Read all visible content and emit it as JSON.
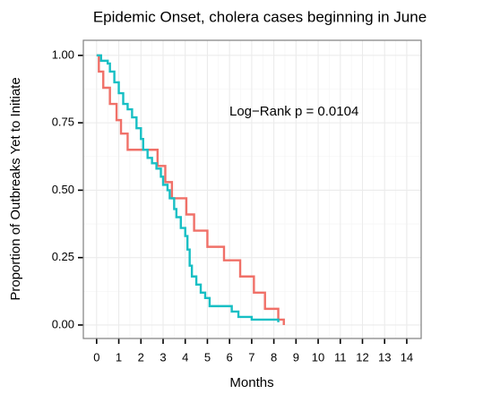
{
  "chart_data": {
    "type": "step",
    "title": "Epidemic Onset, cholera cases beginning in June",
    "xlabel": "Months",
    "ylabel": "Proportion of Outbreaks Yet to Initiate",
    "annotation": "Log−Rank p =  0.0104",
    "xlim": [
      -0.6,
      14.65
    ],
    "ylim": [
      -0.05,
      1.056
    ],
    "xticks": [
      0,
      1,
      2,
      3,
      4,
      5,
      6,
      7,
      8,
      9,
      10,
      11,
      12,
      13,
      14
    ],
    "yticks": [
      {
        "value": 0,
        "label": "0.00"
      },
      0.25,
      {
        "value": 0.5,
        "label": "0.50"
      },
      0.75,
      {
        "value": 1,
        "label": "1.00"
      }
    ],
    "grid": true,
    "series": [
      {
        "color": "#f07068",
        "x": [
          0,
          0.1,
          0.3,
          0.6,
          0.9,
          1.1,
          1.4,
          2.75,
          3.1,
          3.4,
          4.05,
          4.4,
          5.0,
          5.75,
          6.48,
          7.1,
          7.6,
          8.2,
          8.45
        ],
        "values": [
          1,
          0.94,
          0.88,
          0.82,
          0.76,
          0.71,
          0.65,
          0.59,
          0.53,
          0.47,
          0.41,
          0.35,
          0.29,
          0.24,
          0.18,
          0.12,
          0.06,
          0.02,
          0
        ]
      },
      {
        "color": "#17bfc4",
        "x": [
          0,
          0.2,
          0.5,
          0.6,
          0.8,
          1.0,
          1.2,
          1.4,
          1.6,
          1.8,
          2.0,
          2.1,
          2.3,
          2.5,
          2.7,
          2.9,
          3.0,
          3.2,
          3.3,
          3.5,
          3.6,
          3.8,
          4.0,
          4.1,
          4.2,
          4.3,
          4.5,
          4.7,
          4.9,
          5.1,
          6.1,
          6.4,
          7.0,
          8.2
        ],
        "values": [
          1,
          0.98,
          0.97,
          0.94,
          0.9,
          0.86,
          0.82,
          0.8,
          0.77,
          0.73,
          0.69,
          0.65,
          0.62,
          0.6,
          0.58,
          0.55,
          0.52,
          0.5,
          0.47,
          0.43,
          0.4,
          0.36,
          0.33,
          0.28,
          0.22,
          0.18,
          0.15,
          0.12,
          0.1,
          0.07,
          0.05,
          0.03,
          0.02,
          0.01
        ]
      }
    ]
  }
}
